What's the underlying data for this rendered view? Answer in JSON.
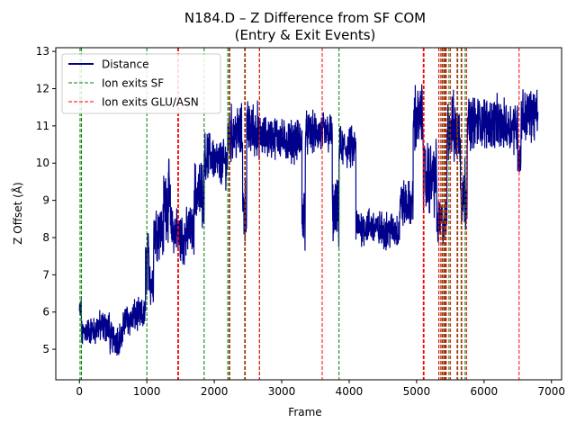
{
  "chart_data": {
    "type": "line",
    "title": "N184.D – Z Difference from SF COM",
    "subtitle": "(Entry & Exit Events)",
    "xlabel": "Frame",
    "ylabel": "Z Offset (Å)",
    "xlim": [
      -350,
      7150
    ],
    "ylim": [
      4.18,
      13.1
    ],
    "xticks": [
      0,
      1000,
      2000,
      3000,
      4000,
      5000,
      6000,
      7000
    ],
    "yticks": [
      5,
      6,
      7,
      8,
      9,
      10,
      11,
      12,
      13
    ],
    "grid": false,
    "legend_position": "top-left",
    "legend": [
      "Distance",
      "Ion exits SF",
      "Ion exits GLU/ASN"
    ],
    "colors": {
      "distance": "#00008b",
      "sf_exit": "#008000",
      "glu_exit": "#ff0000"
    },
    "series": [
      {
        "name": "Distance",
        "segments": [
          {
            "x0": 0,
            "x1": 30,
            "center": 6.0,
            "noise": 0.6
          },
          {
            "x0": 30,
            "x1": 60,
            "center": 5.4,
            "noise": 0.6
          },
          {
            "x0": 60,
            "x1": 250,
            "center": 5.5,
            "noise": 0.6
          },
          {
            "x0": 250,
            "x1": 450,
            "center": 5.6,
            "noise": 0.7
          },
          {
            "x0": 450,
            "x1": 650,
            "center": 5.3,
            "noise": 0.7
          },
          {
            "x0": 650,
            "x1": 800,
            "center": 5.8,
            "noise": 0.7
          },
          {
            "x0": 800,
            "x1": 980,
            "center": 5.9,
            "noise": 0.7
          },
          {
            "x0": 980,
            "x1": 1050,
            "center": 7.3,
            "noise": 1.4
          },
          {
            "x0": 1050,
            "x1": 1100,
            "center": 6.8,
            "noise": 1.0
          },
          {
            "x0": 1100,
            "x1": 1250,
            "center": 8.2,
            "noise": 1.2
          },
          {
            "x0": 1250,
            "x1": 1350,
            "center": 9.0,
            "noise": 1.6
          },
          {
            "x0": 1350,
            "x1": 1460,
            "center": 8.2,
            "noise": 1.0
          },
          {
            "x0": 1460,
            "x1": 1600,
            "center": 8.0,
            "noise": 1.2
          },
          {
            "x0": 1600,
            "x1": 1700,
            "center": 8.2,
            "noise": 1.0
          },
          {
            "x0": 1700,
            "x1": 1850,
            "center": 9.2,
            "noise": 1.4
          },
          {
            "x0": 1850,
            "x1": 2000,
            "center": 10.2,
            "noise": 1.0
          },
          {
            "x0": 2000,
            "x1": 2200,
            "center": 10.0,
            "noise": 1.0
          },
          {
            "x0": 2200,
            "x1": 2420,
            "center": 10.8,
            "noise": 1.2
          },
          {
            "x0": 2420,
            "x1": 2480,
            "center": 8.8,
            "noise": 1.4
          },
          {
            "x0": 2480,
            "x1": 2650,
            "center": 10.9,
            "noise": 1.2
          },
          {
            "x0": 2650,
            "x1": 3000,
            "center": 10.7,
            "noise": 0.9
          },
          {
            "x0": 3000,
            "x1": 3300,
            "center": 10.6,
            "noise": 0.9
          },
          {
            "x0": 3300,
            "x1": 3350,
            "center": 8.6,
            "noise": 1.4
          },
          {
            "x0": 3350,
            "x1": 3750,
            "center": 10.8,
            "noise": 0.9
          },
          {
            "x0": 3750,
            "x1": 3850,
            "center": 8.6,
            "noise": 1.4
          },
          {
            "x0": 3850,
            "x1": 4100,
            "center": 10.4,
            "noise": 0.9
          },
          {
            "x0": 4100,
            "x1": 4400,
            "center": 8.3,
            "noise": 0.8
          },
          {
            "x0": 4400,
            "x1": 4750,
            "center": 8.2,
            "noise": 0.8
          },
          {
            "x0": 4750,
            "x1": 4950,
            "center": 8.9,
            "noise": 1.0
          },
          {
            "x0": 4950,
            "x1": 5100,
            "center": 11.2,
            "noise": 1.4
          },
          {
            "x0": 5100,
            "x1": 5300,
            "center": 9.6,
            "noise": 1.6
          },
          {
            "x0": 5300,
            "x1": 5450,
            "center": 8.4,
            "noise": 1.0
          },
          {
            "x0": 5450,
            "x1": 5550,
            "center": 11.0,
            "noise": 1.4
          },
          {
            "x0": 5550,
            "x1": 5650,
            "center": 10.8,
            "noise": 1.4
          },
          {
            "x0": 5650,
            "x1": 5750,
            "center": 9.2,
            "noise": 1.6
          },
          {
            "x0": 5750,
            "x1": 6200,
            "center": 11.1,
            "noise": 1.1
          },
          {
            "x0": 6200,
            "x1": 6500,
            "center": 11.0,
            "noise": 1.1
          },
          {
            "x0": 6500,
            "x1": 6550,
            "center": 10.2,
            "noise": 1.0
          },
          {
            "x0": 6550,
            "x1": 6800,
            "center": 11.3,
            "noise": 1.1
          }
        ]
      },
      {
        "name": "Ion exits SF",
        "x": [
          10,
          30,
          1000,
          1460,
          1850,
          2200,
          2220,
          2450,
          2670,
          3850,
          5100,
          5330,
          5360,
          5380,
          5410,
          5430,
          5480,
          5600,
          5660,
          5720
        ]
      },
      {
        "name": "Ion exits GLU/ASN",
        "x": [
          1460,
          1470,
          2230,
          2460,
          2670,
          3600,
          5100,
          5110,
          5330,
          5360,
          5390,
          5420,
          5440,
          5500,
          5610,
          5670,
          5740,
          6520
        ]
      }
    ]
  }
}
